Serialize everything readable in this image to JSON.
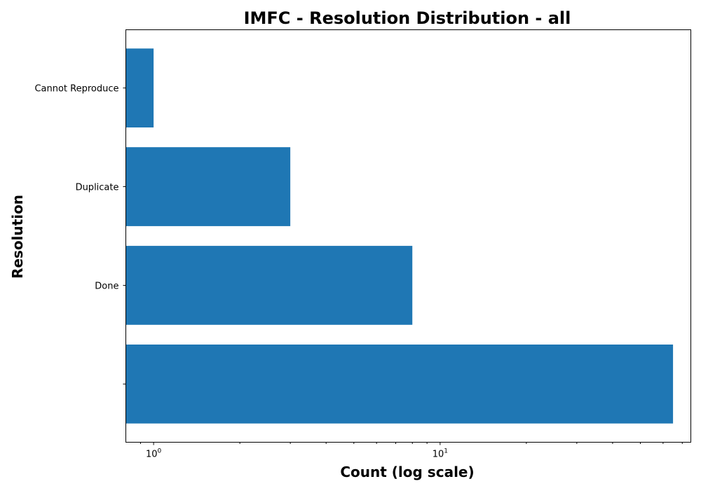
{
  "chart_data": {
    "type": "bar",
    "orientation": "horizontal",
    "title": "IMFC - Resolution Distribution - all",
    "xlabel": "Count (log scale)",
    "ylabel": "Resolution",
    "xscale": "log",
    "xlim": [
      0.8,
      75
    ],
    "categories": [
      "",
      "Done",
      "Duplicate",
      "Cannot Reproduce"
    ],
    "values": [
      65,
      8,
      3,
      1
    ],
    "x_ticks": [
      {
        "value": 1,
        "base": "10",
        "exp": "0"
      },
      {
        "value": 10,
        "base": "10",
        "exp": "1"
      }
    ],
    "grid": false,
    "legend": "none",
    "colors": {
      "bar": "#1f77b4",
      "axis": "#000000"
    }
  }
}
